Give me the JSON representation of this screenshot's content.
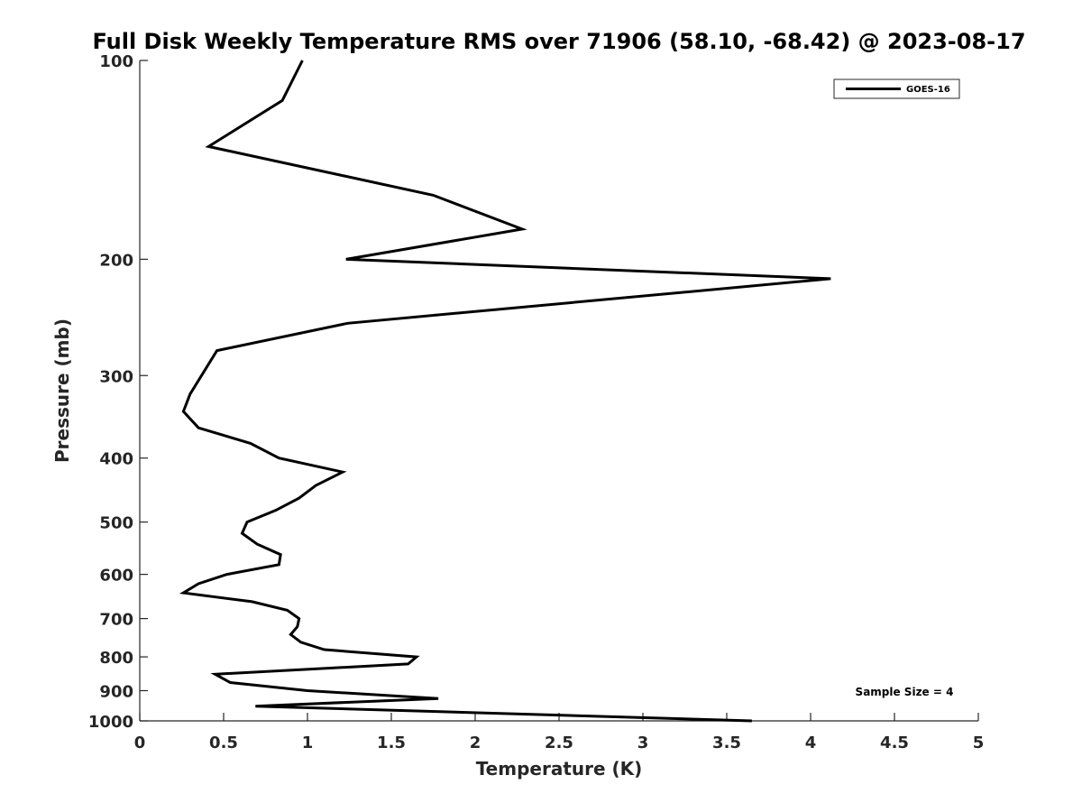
{
  "chart_data": {
    "type": "line",
    "title": "Full Disk Weekly Temperature RMS over 71906 (58.10, -68.42) @ 2023-08-17",
    "xlabel": "Temperature (K)",
    "ylabel": "Pressure (mb)",
    "xlim": [
      0,
      5
    ],
    "ylim": [
      100,
      1000
    ],
    "y_scale": "log",
    "y_reversed": true,
    "x_ticks": [
      0,
      0.5,
      1,
      1.5,
      2,
      2.5,
      3,
      3.5,
      4,
      4.5,
      5
    ],
    "x_tick_labels": [
      "0",
      "0.5",
      "1",
      "1.5",
      "2",
      "2.5",
      "3",
      "3.5",
      "4",
      "4.5",
      "5"
    ],
    "y_ticks": [
      100,
      200,
      300,
      400,
      500,
      600,
      700,
      800,
      900,
      1000
    ],
    "y_tick_labels": [
      "100",
      "200",
      "300",
      "400",
      "500",
      "600",
      "700",
      "800",
      "900",
      "1000"
    ],
    "grid": false,
    "legend_position": "top-right",
    "annotation": "Sample Size = 4",
    "series": [
      {
        "name": "GOES-16",
        "color": "#000000",
        "x": [
          0.97,
          0.85,
          0.41,
          1.75,
          2.28,
          1.23,
          4.12,
          1.24,
          0.46,
          0.3,
          0.26,
          0.35,
          0.66,
          0.83,
          1.21,
          1.05,
          0.95,
          0.81,
          0.64,
          0.61,
          0.7,
          0.84,
          0.83,
          0.52,
          0.35,
          0.26,
          0.67,
          0.88,
          0.95,
          0.94,
          0.9,
          0.96,
          1.1,
          1.65,
          1.6,
          0.45,
          0.54,
          1.0,
          1.78,
          0.69,
          3.65
        ],
        "y": [
          100,
          115,
          135,
          160,
          180,
          200,
          214,
          250,
          275,
          320,
          340,
          360,
          380,
          400,
          420,
          440,
          460,
          480,
          500,
          520,
          540,
          560,
          580,
          600,
          620,
          640,
          660,
          680,
          700,
          720,
          740,
          760,
          780,
          800,
          820,
          850,
          875,
          900,
          925,
          950,
          1000
        ]
      }
    ]
  }
}
